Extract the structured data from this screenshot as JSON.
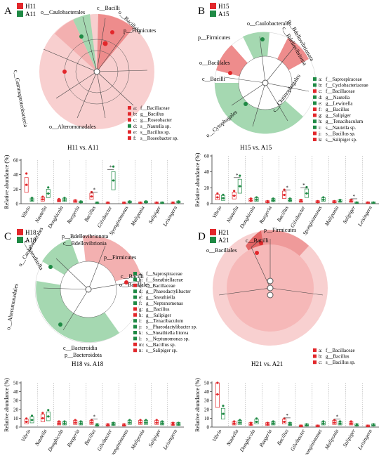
{
  "colors": {
    "red": "#e2272b",
    "green": "#1f8a45",
    "red_light": "#f2a6a6",
    "green_light": "#9fd3ac"
  },
  "xcats": [
    "Vibrio",
    "Nautella",
    "Donghicola",
    "Ruegeria",
    "Bacillus",
    "Gilvibacter",
    "Sponginimonas",
    "Maliponia",
    "Salipiger",
    "Leisingera"
  ],
  "ylabel": "Relative abundance (%)",
  "panels": [
    {
      "id": "A",
      "legend": [
        "H11",
        "A11"
      ],
      "compare": "H11 vs. A11",
      "taxa": [
        {
          "text": "o__Caulobacterales"
        },
        {
          "text": "c__Bacilli"
        },
        {
          "text": "o__Bacillales"
        },
        {
          "text": "p__Firmicutes"
        },
        {
          "text": "c__Gammaproteobacteria"
        },
        {
          "text": "o__Alteromonadales"
        }
      ],
      "key": [
        {
          "letter": "a:",
          "text": "f__Bacillaceae",
          "color": "red"
        },
        {
          "letter": "b:",
          "text": "g__Bacillus",
          "color": "red"
        },
        {
          "letter": "c:",
          "text": "g__Roseobacter",
          "color": "red"
        },
        {
          "letter": "d:",
          "text": "s__Nautella sp.",
          "color": "green"
        },
        {
          "letter": "e:",
          "text": "s__Bacillus sp.",
          "color": "red"
        },
        {
          "letter": "f:",
          "text": "s__Roseobacter sp.",
          "color": "red"
        }
      ]
    },
    {
      "id": "B",
      "legend": [
        "H15",
        "A15"
      ],
      "compare": "H15 vs. A15",
      "taxa": [
        {
          "text": "o__Caulobacterales"
        },
        {
          "text": "p__Bdellovibrionota"
        },
        {
          "text": "c__Bdellovibrionia"
        },
        {
          "text": "p__Firmicutes"
        },
        {
          "text": "o__Bacillales"
        },
        {
          "text": "c__Bacilli"
        },
        {
          "text": "o__Cytophagales"
        },
        {
          "text": "c__Chitinophagales"
        }
      ],
      "key": [
        {
          "letter": "a:",
          "text": "f__Saprospiraceae",
          "color": "green"
        },
        {
          "letter": "b:",
          "text": "f__Cyclobacteriaceae",
          "color": "green"
        },
        {
          "letter": "c:",
          "text": "f__Bacillaceae",
          "color": "red"
        },
        {
          "letter": "d:",
          "text": "g__Nautella",
          "color": "green"
        },
        {
          "letter": "e:",
          "text": "g__Lewinella",
          "color": "green"
        },
        {
          "letter": "f:",
          "text": "g__Bacillus",
          "color": "red"
        },
        {
          "letter": "g:",
          "text": "g__Salipiger",
          "color": "red"
        },
        {
          "letter": "h:",
          "text": "g__Tenacibaculum",
          "color": "green"
        },
        {
          "letter": "i:",
          "text": "s__Nautella sp.",
          "color": "green"
        },
        {
          "letter": "j:",
          "text": "s__Bacillus sp.",
          "color": "red"
        },
        {
          "letter": "k:",
          "text": "s__Salipiger sp.",
          "color": "red"
        }
      ]
    },
    {
      "id": "C",
      "legend": [
        "H18",
        "A18"
      ],
      "compare": "H18 vs. A18",
      "taxa": [
        {
          "text": "o__Caulobacterales"
        },
        {
          "text": "c__Sneathiella"
        },
        {
          "text": "p__Bdellovibrionota"
        },
        {
          "text": "c__Bdellovibrionia"
        },
        {
          "text": "p__Firmicutes"
        },
        {
          "text": "c__Bacilli"
        },
        {
          "text": "o__Bacillales"
        },
        {
          "text": "o__Alteromonadales"
        },
        {
          "text": "c__Bacteroidia"
        },
        {
          "text": "p__Bacteroidota"
        }
      ],
      "key": [
        {
          "letter": "a:",
          "text": "f__Saprospiraceae",
          "color": "green"
        },
        {
          "letter": "b:",
          "text": "f__Sneathiellaceae",
          "color": "green"
        },
        {
          "letter": "c:",
          "text": "f__Bacillaceae",
          "color": "red"
        },
        {
          "letter": "d:",
          "text": "g__Phaeodactylibacter",
          "color": "green"
        },
        {
          "letter": "e:",
          "text": "g__Sneathiella",
          "color": "green"
        },
        {
          "letter": "f:",
          "text": "g__Neptunomonas",
          "color": "green"
        },
        {
          "letter": "g:",
          "text": "g__Bacillus",
          "color": "red"
        },
        {
          "letter": "h:",
          "text": "g__Salipiger",
          "color": "red"
        },
        {
          "letter": "i:",
          "text": "g__Tenacibaculum",
          "color": "green"
        },
        {
          "letter": "j:",
          "text": "s__Phaeodactylibacter sp.",
          "color": "green"
        },
        {
          "letter": "k:",
          "text": "s__Sneathiella litorea",
          "color": "green"
        },
        {
          "letter": "l:",
          "text": "s__Neptunomonas sp.",
          "color": "green"
        },
        {
          "letter": "m:",
          "text": "s__Bacillus sp.",
          "color": "red"
        },
        {
          "letter": "n:",
          "text": "s__Salipiger sp.",
          "color": "red"
        }
      ]
    },
    {
      "id": "D",
      "legend": [
        "H21",
        "A21"
      ],
      "compare": "H21 vs. A21",
      "taxa": [
        {
          "text": "p__Firmicutes"
        },
        {
          "text": "c__Bacilli"
        },
        {
          "text": "o__Bacillales"
        }
      ],
      "key": [
        {
          "letter": "a:",
          "text": "f__Bacillaceae",
          "color": "red"
        },
        {
          "letter": "b:",
          "text": "g__Bacillus",
          "color": "red"
        },
        {
          "letter": "c:",
          "text": "s__Bacillus sp.",
          "color": "red"
        }
      ]
    }
  ],
  "chart_data": [
    {
      "type": "box",
      "panel": "A",
      "ylabel": "Relative abundance (%)",
      "ylim": [
        0,
        60
      ],
      "categories": [
        "Vibrio",
        "Nautella",
        "Donghicola",
        "Ruegeria",
        "Bacillus",
        "Gilvibacter",
        "Sponginimonas",
        "Maliponia",
        "Salipiger",
        "Leisingera"
      ],
      "series": [
        {
          "name": "H11",
          "values": [
            26,
            6,
            4,
            3,
            10,
            1,
            1,
            1,
            1,
            1
          ]
        },
        {
          "name": "A11",
          "values": [
            5,
            14,
            5,
            2,
            1,
            32,
            2,
            2,
            1,
            2
          ]
        }
      ],
      "significant": [
        "Bacillus",
        "Gilvibacter"
      ]
    },
    {
      "type": "box",
      "panel": "B",
      "ylabel": "Relative abundance (%)",
      "ylim": [
        0,
        60
      ],
      "categories": [
        "Vibrio",
        "Nautella",
        "Donghicola",
        "Ruegeria",
        "Bacillus",
        "Gilvibacter",
        "Sponginimonas",
        "Maliponia",
        "Salipiger",
        "Leisingera"
      ],
      "series": [
        {
          "name": "H15",
          "values": [
            8,
            10,
            4,
            2,
            11,
            3,
            2,
            2,
            3,
            1
          ]
        },
        {
          "name": "A15",
          "values": [
            7,
            22,
            5,
            4,
            4,
            13,
            5,
            3,
            1,
            1
          ]
        }
      ],
      "significant": [
        "Nautella",
        "Bacillus",
        "Gilvibacter",
        "Salipiger"
      ]
    },
    {
      "type": "box",
      "panel": "C",
      "ylabel": "Relative abundance (%)",
      "ylim": [
        0,
        50
      ],
      "categories": [
        "Vibrio",
        "Nautella",
        "Donghicola",
        "Ruegeria",
        "Bacillus",
        "Gilvibacter",
        "Sponginimonas",
        "Maliponia",
        "Salipiger",
        "Leisingera"
      ],
      "series": [
        {
          "name": "H18",
          "values": [
            6,
            10,
            4,
            5,
            5,
            2,
            2,
            5,
            5,
            3
          ]
        },
        {
          "name": "A18",
          "values": [
            8,
            12,
            4,
            4,
            2,
            3,
            5,
            5,
            4,
            3
          ]
        }
      ],
      "significant": [
        "Bacillus"
      ]
    },
    {
      "type": "box",
      "panel": "D",
      "ylabel": "Relative abundance (%)",
      "ylim": [
        0,
        50
      ],
      "categories": [
        "Vibrio",
        "Nautella",
        "Donghicola",
        "Ruegeria",
        "Bacillus",
        "Gilvibacter",
        "Sponginimonas",
        "Maliponia",
        "Salipiger",
        "Leisingera"
      ],
      "series": [
        {
          "name": "H21",
          "values": [
            37,
            4,
            3,
            3,
            6,
            1,
            1,
            5,
            4,
            1
          ]
        },
        {
          "name": "A21",
          "values": [
            15,
            5,
            6,
            4,
            3,
            2,
            4,
            4,
            2,
            2
          ]
        }
      ],
      "significant": [
        "Bacillus",
        "Maliponia"
      ]
    }
  ],
  "yticks": {
    "A": [
      0,
      20,
      40,
      60
    ],
    "B": [
      0,
      20,
      40,
      60
    ],
    "C": [
      0,
      10,
      20,
      30,
      40,
      50
    ],
    "D": [
      0,
      10,
      20,
      30,
      40,
      50
    ]
  }
}
